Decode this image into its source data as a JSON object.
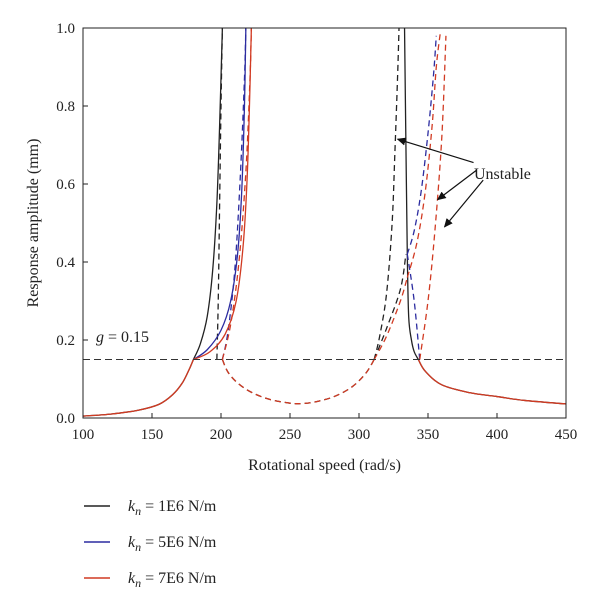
{
  "chart_data": {
    "type": "line",
    "xlabel": "Rotational speed (rad/s)",
    "ylabel": "Response amplitude (mm)",
    "xlim": [
      100,
      450
    ],
    "ylim": [
      0,
      1.0
    ],
    "xticks": [
      100,
      150,
      200,
      250,
      300,
      350,
      400,
      450
    ],
    "yticks": [
      0.0,
      0.2,
      0.4,
      0.6,
      0.8,
      1.0
    ],
    "xtick_labels": [
      "100",
      "150",
      "200",
      "250",
      "300",
      "350",
      "400",
      "450"
    ],
    "ytick_labels": [
      "0.0",
      "0.2",
      "0.4",
      "0.6",
      "0.8",
      "1.0"
    ],
    "grid": false,
    "legend_position": "bottom-left, below plot",
    "threshold": {
      "y": 0.15,
      "label": "g = 0.15",
      "label_italic_part": "g",
      "label_rest": " = 0.15",
      "color": "#333333",
      "dash": true
    },
    "annotation": {
      "text": "Unstable"
    },
    "series": [
      {
        "name": "k_n = 1E6 N/m",
        "legend_sym": "k",
        "legend_sub": "n",
        "legend_rest": " = 1E6 N/m",
        "color": "#222222",
        "stable_segments": [
          {
            "x": [
              100,
              120,
              140,
              155,
              165,
              172,
              177,
              180
            ],
            "y": [
              0.005,
              0.01,
              0.02,
              0.035,
              0.06,
              0.09,
              0.125,
              0.15
            ]
          },
          {
            "x": [
              180,
              185,
              190,
              194,
              197,
              199,
              201
            ],
            "y": [
              0.15,
              0.19,
              0.26,
              0.38,
              0.55,
              0.75,
              1.0
            ]
          },
          {
            "x": [
              333,
              334,
              335,
              336,
              338,
              340,
              343
            ],
            "y": [
              1.0,
              0.7,
              0.42,
              0.26,
              0.2,
              0.17,
              0.15
            ]
          },
          {
            "x": [
              343,
              348,
              360,
              380,
              400,
              420,
              450
            ],
            "y": [
              0.15,
              0.12,
              0.085,
              0.065,
              0.055,
              0.045,
              0.036
            ]
          }
        ],
        "unstable_segments": [
          {
            "x": [
              197,
              198,
              199,
              200,
              201
            ],
            "y": [
              0.15,
              0.3,
              0.55,
              0.8,
              1.0
            ]
          },
          {
            "x": [
              201,
              205,
              212,
              222,
              235,
              250,
              258,
              268,
              282,
              295,
              305,
              311
            ],
            "y": [
              0.15,
              0.118,
              0.09,
              0.066,
              0.048,
              0.038,
              0.037,
              0.041,
              0.055,
              0.08,
              0.115,
              0.15
            ]
          },
          {
            "x": [
              311,
              315,
              320,
              324,
              326,
              328,
              329
            ],
            "y": [
              0.15,
              0.21,
              0.32,
              0.5,
              0.68,
              0.88,
              1.0
            ]
          },
          {
            "x": [
              311,
              320,
              330,
              334
            ],
            "y": [
              0.15,
              0.23,
              0.33,
              0.42
            ]
          }
        ]
      },
      {
        "name": "k_n = 5E6 N/m",
        "legend_sym": "k",
        "legend_sub": "n",
        "legend_rest": " = 5E6 N/m",
        "color": "#2c2ca0",
        "stable_segments": [
          {
            "x": [
              180,
              190,
              200,
              207,
              212,
              215,
              217,
              218
            ],
            "y": [
              0.15,
              0.175,
              0.225,
              0.3,
              0.42,
              0.58,
              0.8,
              1.0
            ]
          }
        ],
        "unstable_segments": [
          {
            "x": [
              201,
              205,
              210,
              214,
              217,
              218
            ],
            "y": [
              0.15,
              0.22,
              0.38,
              0.62,
              0.87,
              1.0
            ]
          },
          {
            "x": [
              335,
              340,
              345,
              350,
              354,
              356
            ],
            "y": [
              0.42,
              0.48,
              0.58,
              0.73,
              0.88,
              0.98
            ]
          },
          {
            "x": [
              335,
              340,
              344
            ],
            "y": [
              0.42,
              0.3,
              0.15
            ]
          }
        ]
      },
      {
        "name": "k_n = 7E6 N/m",
        "legend_sym": "k",
        "legend_sub": "n",
        "legend_rest": " = 7E6 N/m",
        "color": "#d13a22",
        "stable_segments": [
          {
            "x": [
              100,
              120,
              140,
              155,
              165,
              172,
              177,
              180
            ],
            "y": [
              0.005,
              0.01,
              0.02,
              0.035,
              0.06,
              0.09,
              0.125,
              0.15
            ]
          },
          {
            "x": [
              180,
              192,
              203,
              211,
              216,
              219,
              221,
              222
            ],
            "y": [
              0.15,
              0.17,
              0.215,
              0.3,
              0.44,
              0.62,
              0.85,
              1.0
            ]
          },
          {
            "x": [
              343,
              348,
              360,
              380,
              400,
              420,
              450
            ],
            "y": [
              0.15,
              0.12,
              0.085,
              0.065,
              0.055,
              0.045,
              0.036
            ]
          }
        ],
        "unstable_segments": [
          {
            "x": [
              201,
              205,
              212,
              222,
              235,
              250,
              258,
              268,
              282,
              295,
              305,
              311
            ],
            "y": [
              0.15,
              0.118,
              0.09,
              0.066,
              0.048,
              0.038,
              0.037,
              0.041,
              0.055,
              0.08,
              0.115,
              0.15
            ]
          },
          {
            "x": [
              201,
              207,
              213,
              218,
              221,
              222
            ],
            "y": [
              0.15,
              0.24,
              0.4,
              0.63,
              0.87,
              1.0
            ]
          },
          {
            "x": [
              311,
              320,
              330,
              335
            ],
            "y": [
              0.15,
              0.21,
              0.3,
              0.36
            ]
          },
          {
            "x": [
              344,
              350,
              355,
              360,
              363
            ],
            "y": [
              0.15,
              0.3,
              0.48,
              0.72,
              0.98
            ]
          },
          {
            "x": [
              335,
              342,
              348,
              353,
              356,
              359
            ],
            "y": [
              0.36,
              0.45,
              0.58,
              0.75,
              0.9,
              0.99
            ]
          }
        ]
      }
    ]
  }
}
